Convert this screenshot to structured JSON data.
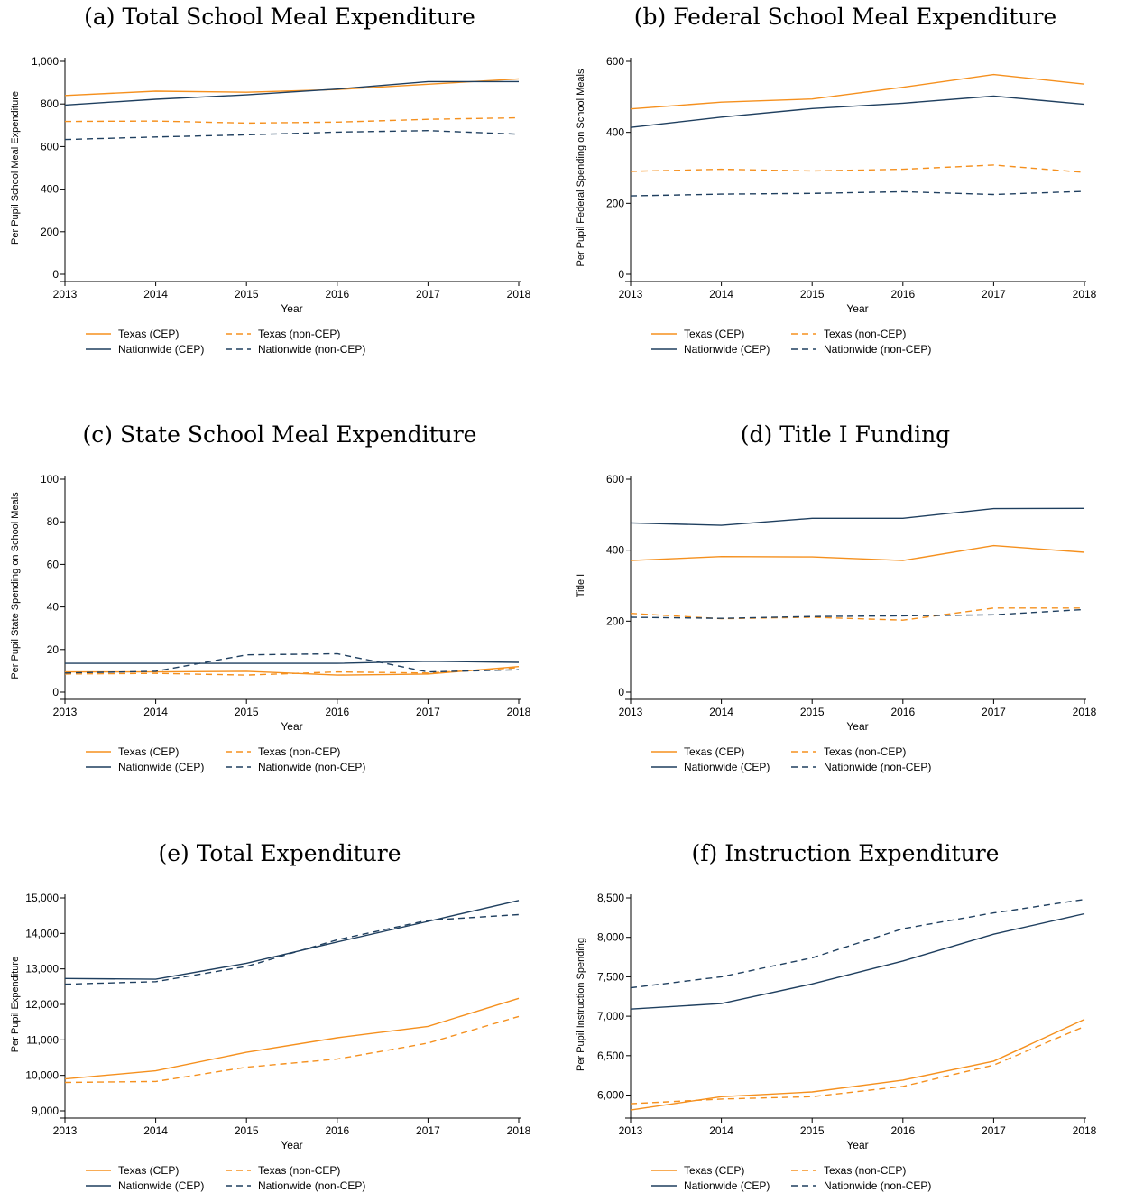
{
  "colors": {
    "texas": "#f5901e",
    "nationwide": "#1f3f5f",
    "axis": "#000000"
  },
  "chart_data": [
    {
      "type": "line",
      "title": "(a) Total School Meal Expenditure",
      "xlabel": "Year",
      "ylabel": "Per Pupil School Meal Expenditure",
      "x": [
        2013,
        2014,
        2015,
        2016,
        2017,
        2018
      ],
      "ylim": [
        0,
        1000
      ],
      "yticks": [
        0,
        200,
        400,
        600,
        800,
        1000
      ],
      "ytick_labels": [
        "0",
        "200",
        "400",
        "600",
        "800",
        "1,000"
      ],
      "legend": "bottom",
      "series": [
        {
          "name": "Texas (CEP)",
          "values": [
            840,
            860,
            855,
            868,
            893,
            918
          ]
        },
        {
          "name": "Texas (non-CEP)",
          "values": [
            718,
            720,
            710,
            715,
            728,
            735
          ]
        },
        {
          "name": "Nationwide (CEP)",
          "values": [
            795,
            822,
            843,
            870,
            905,
            905
          ]
        },
        {
          "name": "Nationwide (non-CEP)",
          "values": [
            633,
            645,
            655,
            668,
            675,
            658
          ]
        }
      ]
    },
    {
      "type": "line",
      "title": "(b) Federal School Meal Expenditure",
      "xlabel": "Year",
      "ylabel": "Per Pupil Federal Spending on School Meals",
      "x": [
        2013,
        2014,
        2015,
        2016,
        2017,
        2018
      ],
      "ylim": [
        0,
        600
      ],
      "yticks": [
        0,
        200,
        400,
        600
      ],
      "ytick_labels": [
        "0",
        "200",
        "400",
        "600"
      ],
      "legend": "bottom",
      "series": [
        {
          "name": "Texas (CEP)",
          "values": [
            466,
            485,
            494,
            527,
            563,
            536
          ]
        },
        {
          "name": "Texas (non-CEP)",
          "values": [
            290,
            296,
            291,
            296,
            308,
            287
          ]
        },
        {
          "name": "Nationwide (CEP)",
          "values": [
            414,
            443,
            467,
            482,
            502,
            479
          ]
        },
        {
          "name": "Nationwide (non-CEP)",
          "values": [
            221,
            226,
            228,
            233,
            225,
            234
          ]
        }
      ]
    },
    {
      "type": "line",
      "title": "(c) State School Meal Expenditure",
      "xlabel": "Year",
      "ylabel": "Per Pupil State Spending on School Meals",
      "x": [
        2013,
        2014,
        2015,
        2016,
        2017,
        2018
      ],
      "ylim": [
        0,
        100
      ],
      "yticks": [
        0,
        20,
        40,
        60,
        80,
        100
      ],
      "ytick_labels": [
        "0",
        "20",
        "40",
        "60",
        "80",
        "100"
      ],
      "legend": "bottom",
      "series": [
        {
          "name": "Texas (CEP)",
          "values": [
            9.5,
            9.5,
            9.8,
            8,
            8.5,
            12
          ]
        },
        {
          "name": "Texas (non-CEP)",
          "values": [
            8.5,
            8.8,
            8,
            9.5,
            9,
            11.5
          ]
        },
        {
          "name": "Nationwide (CEP)",
          "values": [
            13.5,
            13.5,
            13.5,
            13.5,
            14.5,
            14
          ]
        },
        {
          "name": "Nationwide (non-CEP)",
          "values": [
            9,
            9.8,
            17.5,
            18,
            9.5,
            10.5
          ]
        }
      ]
    },
    {
      "type": "line",
      "title": "(d) Title I Funding",
      "xlabel": "Year",
      "ylabel": "Title I",
      "x": [
        2013,
        2014,
        2015,
        2016,
        2017,
        2018
      ],
      "ylim": [
        0,
        600
      ],
      "yticks": [
        0,
        200,
        400,
        600
      ],
      "ytick_labels": [
        "0",
        "200",
        "400",
        "600"
      ],
      "legend": "bottom",
      "series": [
        {
          "name": "Texas (CEP)",
          "values": [
            371,
            382,
            381,
            371,
            413,
            394
          ]
        },
        {
          "name": "Texas (non-CEP)",
          "values": [
            222,
            207,
            211,
            203,
            237,
            237
          ]
        },
        {
          "name": "Nationwide (CEP)",
          "values": [
            477,
            470,
            490,
            490,
            517,
            518
          ]
        },
        {
          "name": "Nationwide (non-CEP)",
          "values": [
            211,
            208,
            213,
            215,
            218,
            233
          ]
        }
      ]
    },
    {
      "type": "line",
      "title": "(e) Total Expenditure",
      "xlabel": "Year",
      "ylabel": "Per Pupil Expenditure",
      "x": [
        2013,
        2014,
        2015,
        2016,
        2017,
        2018
      ],
      "ylim": [
        9000,
        15000
      ],
      "yticks": [
        9000,
        10000,
        11000,
        12000,
        13000,
        14000,
        15000
      ],
      "ytick_labels": [
        "9,000",
        "10,000",
        "11,000",
        "12,000",
        "13,000",
        "14,000",
        "15,000"
      ],
      "legend": "bottom",
      "series": [
        {
          "name": "Texas (CEP)",
          "values": [
            9900,
            10130,
            10650,
            11060,
            11380,
            12170
          ]
        },
        {
          "name": "Texas (non-CEP)",
          "values": [
            9800,
            9830,
            10230,
            10460,
            10910,
            11660
          ]
        },
        {
          "name": "Nationwide (CEP)",
          "values": [
            12730,
            12710,
            13160,
            13760,
            14340,
            14930
          ]
        },
        {
          "name": "Nationwide (non-CEP)",
          "values": [
            12570,
            12640,
            13070,
            13820,
            14370,
            14530
          ]
        }
      ]
    },
    {
      "type": "line",
      "title": "(f) Instruction Expenditure",
      "xlabel": "Year",
      "ylabel": "Per Pupil Instruction Spending",
      "x": [
        2013,
        2014,
        2015,
        2016,
        2017,
        2018
      ],
      "ylim": [
        5800,
        8500
      ],
      "yticks": [
        6000,
        6500,
        7000,
        7500,
        8000,
        8500
      ],
      "ytick_labels": [
        "6,000",
        "6,500",
        "7,000",
        "7,500",
        "8,000",
        "8,500"
      ],
      "legend": "bottom",
      "series": [
        {
          "name": "Texas (CEP)",
          "values": [
            5810,
            5980,
            6040,
            6190,
            6430,
            6960
          ]
        },
        {
          "name": "Texas (non-CEP)",
          "values": [
            5890,
            5950,
            5980,
            6110,
            6380,
            6870
          ]
        },
        {
          "name": "Nationwide (CEP)",
          "values": [
            7090,
            7160,
            7410,
            7700,
            8040,
            8300
          ]
        },
        {
          "name": "Nationwide (non-CEP)",
          "values": [
            7360,
            7500,
            7740,
            8110,
            8310,
            8480
          ]
        }
      ]
    }
  ]
}
